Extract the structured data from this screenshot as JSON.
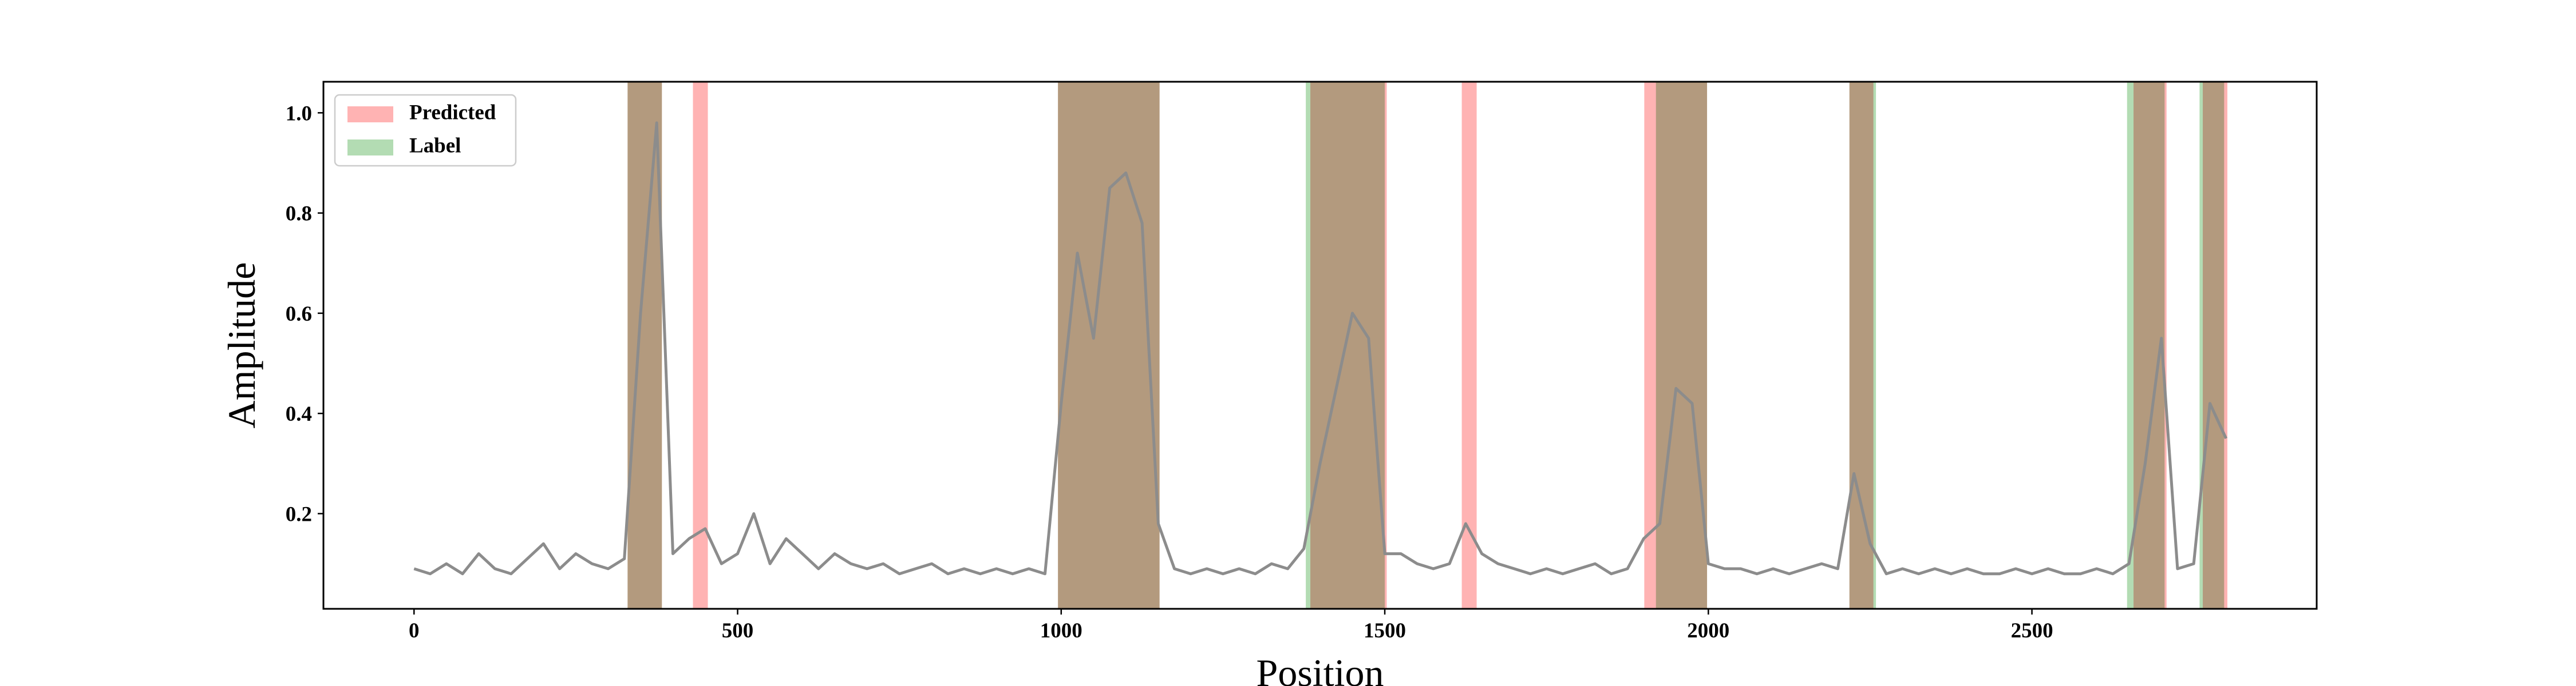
{
  "chart_data": {
    "type": "line",
    "xlabel": "Position",
    "ylabel": "Amplitude",
    "x": [
      0,
      25,
      50,
      75,
      100,
      125,
      150,
      175,
      200,
      225,
      250,
      275,
      300,
      325,
      350,
      375,
      400,
      425,
      450,
      475,
      500,
      525,
      550,
      575,
      600,
      625,
      650,
      675,
      700,
      725,
      750,
      775,
      800,
      825,
      850,
      875,
      900,
      925,
      950,
      975,
      1000,
      1025,
      1050,
      1075,
      1100,
      1125,
      1150,
      1175,
      1200,
      1225,
      1250,
      1275,
      1300,
      1325,
      1350,
      1375,
      1400,
      1425,
      1450,
      1475,
      1500,
      1525,
      1550,
      1575,
      1600,
      1625,
      1650,
      1675,
      1700,
      1725,
      1750,
      1775,
      1800,
      1825,
      1850,
      1875,
      1900,
      1925,
      1950,
      1975,
      2000,
      2025,
      2050,
      2075,
      2100,
      2125,
      2150,
      2175,
      2200,
      2225,
      2250,
      2275,
      2300,
      2325,
      2350,
      2375,
      2400,
      2425,
      2450,
      2475,
      2500,
      2525,
      2550,
      2575,
      2600,
      2625,
      2650,
      2675,
      2700,
      2725,
      2750,
      2775,
      2800
    ],
    "values": [
      0.09,
      0.08,
      0.1,
      0.08,
      0.12,
      0.09,
      0.08,
      0.11,
      0.14,
      0.09,
      0.12,
      0.1,
      0.09,
      0.11,
      0.6,
      0.98,
      0.12,
      0.15,
      0.17,
      0.1,
      0.12,
      0.2,
      0.1,
      0.15,
      0.12,
      0.09,
      0.12,
      0.1,
      0.09,
      0.1,
      0.08,
      0.09,
      0.1,
      0.08,
      0.09,
      0.08,
      0.09,
      0.08,
      0.09,
      0.08,
      0.42,
      0.72,
      0.55,
      0.85,
      0.88,
      0.78,
      0.18,
      0.09,
      0.08,
      0.09,
      0.08,
      0.09,
      0.08,
      0.1,
      0.09,
      0.13,
      0.3,
      0.45,
      0.6,
      0.55,
      0.12,
      0.12,
      0.1,
      0.09,
      0.1,
      0.18,
      0.12,
      0.1,
      0.09,
      0.08,
      0.09,
      0.08,
      0.09,
      0.1,
      0.08,
      0.09,
      0.15,
      0.18,
      0.45,
      0.42,
      0.1,
      0.09,
      0.09,
      0.08,
      0.09,
      0.08,
      0.09,
      0.1,
      0.09,
      0.28,
      0.14,
      0.08,
      0.09,
      0.08,
      0.09,
      0.08,
      0.09,
      0.08,
      0.08,
      0.09,
      0.08,
      0.09,
      0.08,
      0.08,
      0.09,
      0.08,
      0.1,
      0.3,
      0.55,
      0.09,
      0.1,
      0.42,
      0.35
    ],
    "color": "#8c8c8c",
    "spans": [
      {
        "name": "Predicted",
        "color": "#ffb3b3",
        "ranges": [
          [
            330,
            383
          ],
          [
            431,
            454
          ],
          [
            995,
            1152
          ],
          [
            1385,
            1503
          ],
          [
            1619,
            1642
          ],
          [
            1901,
            1998
          ],
          [
            2218,
            2255
          ],
          [
            2657,
            2708
          ],
          [
            2764,
            2802
          ]
        ]
      },
      {
        "name": "Label",
        "color": "#b3dcb3",
        "ranges": [
          [
            330,
            383
          ],
          [
            995,
            1152
          ],
          [
            1378,
            1500
          ],
          [
            1919,
            1998
          ],
          [
            2218,
            2259
          ],
          [
            2647,
            2705
          ],
          [
            2759,
            2797
          ]
        ]
      }
    ],
    "xlim": [
      -140,
      2940
    ],
    "ylim": [
      0.01,
      1.062
    ],
    "xticks": [
      0,
      500,
      1000,
      1500,
      2000,
      2500
    ],
    "yticks": [
      0.2,
      0.4,
      0.6,
      0.8,
      {
        "value": 1,
        "label": "1.0"
      }
    ],
    "legend": "upper left"
  }
}
